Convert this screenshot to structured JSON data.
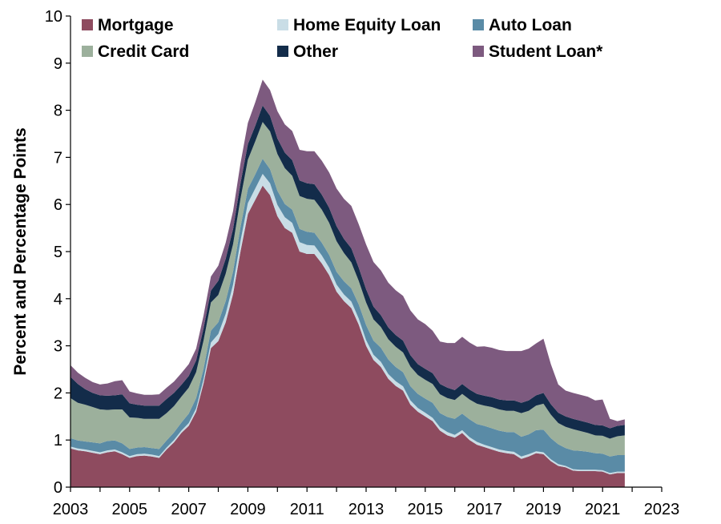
{
  "chart_data": {
    "type": "area",
    "stacked": true,
    "x_start": 2003.0,
    "x_step": 0.25,
    "xlim": [
      2003,
      2023
    ],
    "ylim": [
      0,
      10
    ],
    "x_ticks": [
      "2003",
      "2005",
      "2007",
      "2009",
      "2011",
      "2013",
      "2015",
      "2017",
      "2019",
      "2021",
      "2023"
    ],
    "y_ticks": [
      "0",
      "1",
      "2",
      "3",
      "4",
      "5",
      "6",
      "7",
      "8",
      "9",
      "10"
    ],
    "ylabel": "Percent and Percentage Points",
    "xlabel": "",
    "grid": false,
    "legend_position": "top",
    "series": [
      {
        "name": "Mortgage",
        "color": "#8e4b5f",
        "values": [
          0.82,
          0.78,
          0.76,
          0.73,
          0.7,
          0.74,
          0.76,
          0.7,
          0.62,
          0.66,
          0.67,
          0.65,
          0.62,
          0.8,
          0.95,
          1.15,
          1.3,
          1.6,
          2.2,
          2.95,
          3.1,
          3.5,
          4.1,
          5.0,
          5.8,
          6.1,
          6.4,
          6.2,
          5.75,
          5.5,
          5.4,
          5.0,
          4.95,
          4.95,
          4.75,
          4.5,
          4.15,
          3.95,
          3.8,
          3.45,
          3.0,
          2.7,
          2.55,
          2.3,
          2.15,
          2.05,
          1.75,
          1.6,
          1.5,
          1.4,
          1.2,
          1.1,
          1.05,
          1.15,
          1.0,
          0.9,
          0.85,
          0.8,
          0.75,
          0.72,
          0.7,
          0.6,
          0.65,
          0.72,
          0.7,
          0.55,
          0.45,
          0.42,
          0.35,
          0.34,
          0.34,
          0.34,
          0.33,
          0.27,
          0.3,
          0.3
        ]
      },
      {
        "name": "Home Equity Loan",
        "color": "#c9dde6",
        "values": [
          0.04,
          0.04,
          0.04,
          0.04,
          0.04,
          0.04,
          0.04,
          0.04,
          0.04,
          0.04,
          0.04,
          0.04,
          0.04,
          0.04,
          0.05,
          0.05,
          0.06,
          0.07,
          0.09,
          0.12,
          0.15,
          0.18,
          0.2,
          0.22,
          0.23,
          0.24,
          0.25,
          0.25,
          0.24,
          0.23,
          0.21,
          0.2,
          0.19,
          0.18,
          0.17,
          0.16,
          0.15,
          0.14,
          0.14,
          0.13,
          0.12,
          0.11,
          0.11,
          0.1,
          0.1,
          0.09,
          0.09,
          0.08,
          0.08,
          0.07,
          0.07,
          0.07,
          0.06,
          0.06,
          0.06,
          0.06,
          0.05,
          0.05,
          0.05,
          0.05,
          0.05,
          0.05,
          0.05,
          0.04,
          0.04,
          0.04,
          0.04,
          0.03,
          0.03,
          0.03,
          0.03,
          0.03,
          0.03,
          0.03,
          0.03,
          0.03
        ]
      },
      {
        "name": "Auto Loan",
        "color": "#5a8ba6",
        "values": [
          0.18,
          0.17,
          0.17,
          0.18,
          0.19,
          0.2,
          0.19,
          0.19,
          0.15,
          0.14,
          0.14,
          0.14,
          0.15,
          0.15,
          0.16,
          0.17,
          0.2,
          0.22,
          0.22,
          0.25,
          0.25,
          0.27,
          0.28,
          0.3,
          0.3,
          0.3,
          0.32,
          0.3,
          0.3,
          0.28,
          0.28,
          0.28,
          0.28,
          0.27,
          0.27,
          0.27,
          0.27,
          0.28,
          0.28,
          0.3,
          0.32,
          0.3,
          0.3,
          0.31,
          0.3,
          0.3,
          0.3,
          0.3,
          0.3,
          0.32,
          0.3,
          0.32,
          0.34,
          0.35,
          0.38,
          0.38,
          0.4,
          0.4,
          0.4,
          0.4,
          0.42,
          0.42,
          0.42,
          0.45,
          0.48,
          0.45,
          0.42,
          0.38,
          0.4,
          0.4,
          0.38,
          0.35,
          0.35,
          0.35,
          0.35,
          0.35
        ]
      },
      {
        "name": "Credit Card",
        "color": "#9cb09c",
        "values": [
          0.85,
          0.8,
          0.78,
          0.75,
          0.72,
          0.66,
          0.66,
          0.72,
          0.67,
          0.63,
          0.6,
          0.62,
          0.64,
          0.58,
          0.56,
          0.55,
          0.55,
          0.55,
          0.6,
          0.6,
          0.58,
          0.58,
          0.58,
          0.6,
          0.62,
          0.7,
          0.78,
          0.8,
          0.78,
          0.76,
          0.72,
          0.7,
          0.7,
          0.7,
          0.7,
          0.68,
          0.65,
          0.6,
          0.55,
          0.5,
          0.48,
          0.45,
          0.44,
          0.43,
          0.43,
          0.42,
          0.42,
          0.4,
          0.4,
          0.4,
          0.4,
          0.4,
          0.4,
          0.42,
          0.42,
          0.43,
          0.43,
          0.45,
          0.45,
          0.45,
          0.45,
          0.5,
          0.5,
          0.52,
          0.55,
          0.5,
          0.45,
          0.45,
          0.45,
          0.42,
          0.4,
          0.38,
          0.38,
          0.38,
          0.4,
          0.42
        ]
      },
      {
        "name": "Other",
        "color": "#132c4a",
        "values": [
          0.45,
          0.4,
          0.33,
          0.3,
          0.3,
          0.3,
          0.3,
          0.32,
          0.3,
          0.28,
          0.28,
          0.28,
          0.28,
          0.3,
          0.28,
          0.25,
          0.25,
          0.25,
          0.26,
          0.25,
          0.3,
          0.32,
          0.32,
          0.33,
          0.33,
          0.33,
          0.35,
          0.33,
          0.33,
          0.33,
          0.33,
          0.33,
          0.33,
          0.33,
          0.32,
          0.32,
          0.32,
          0.3,
          0.3,
          0.28,
          0.28,
          0.27,
          0.25,
          0.25,
          0.25,
          0.25,
          0.24,
          0.23,
          0.23,
          0.23,
          0.22,
          0.22,
          0.21,
          0.21,
          0.21,
          0.21,
          0.21,
          0.21,
          0.21,
          0.22,
          0.22,
          0.22,
          0.22,
          0.22,
          0.23,
          0.22,
          0.22,
          0.22,
          0.22,
          0.22,
          0.22,
          0.22,
          0.22,
          0.22,
          0.22,
          0.22
        ]
      },
      {
        "name": "Student Loan*",
        "color": "#7d5a7f",
        "values": [
          0.25,
          0.24,
          0.24,
          0.23,
          0.23,
          0.26,
          0.3,
          0.3,
          0.25,
          0.24,
          0.23,
          0.23,
          0.24,
          0.24,
          0.24,
          0.25,
          0.25,
          0.25,
          0.27,
          0.3,
          0.32,
          0.34,
          0.38,
          0.42,
          0.45,
          0.5,
          0.55,
          0.55,
          0.58,
          0.6,
          0.62,
          0.65,
          0.68,
          0.7,
          0.72,
          0.75,
          0.8,
          0.85,
          0.9,
          0.92,
          0.95,
          0.95,
          0.95,
          0.95,
          0.95,
          0.95,
          0.95,
          0.95,
          0.95,
          0.9,
          0.9,
          0.95,
          1.0,
          1.0,
          1.0,
          1.0,
          1.05,
          1.05,
          1.05,
          1.05,
          1.05,
          1.1,
          1.1,
          1.1,
          1.15,
          0.85,
          0.6,
          0.55,
          0.55,
          0.55,
          0.55,
          0.52,
          0.55,
          0.2,
          0.1,
          0.12
        ]
      }
    ]
  }
}
